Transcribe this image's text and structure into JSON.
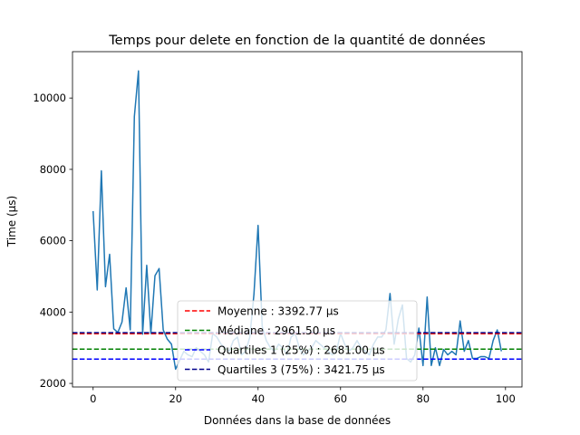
{
  "chart_data": {
    "type": "line",
    "title": "Temps pour delete en fonction de la quantité de données",
    "xlabel": "Données dans la base de données",
    "ylabel": "Time (µs)",
    "xlim": [
      -5,
      104
    ],
    "ylim": [
      1900,
      11300
    ],
    "xticks": [
      0,
      20,
      40,
      60,
      80,
      100
    ],
    "yticks": [
      2000,
      4000,
      6000,
      8000,
      10000
    ],
    "grid": false,
    "legend_position": "lower center",
    "series": [
      {
        "color": "#1f77b4",
        "x": [
          0,
          1,
          2,
          3,
          4,
          5,
          6,
          7,
          8,
          9,
          10,
          11,
          12,
          13,
          14,
          15,
          16,
          17,
          18,
          19,
          20,
          21,
          22,
          23,
          24,
          25,
          26,
          27,
          28,
          29,
          30,
          31,
          32,
          33,
          34,
          35,
          36,
          37,
          38,
          39,
          40,
          41,
          42,
          43,
          44,
          45,
          46,
          47,
          48,
          49,
          50,
          51,
          52,
          53,
          54,
          55,
          56,
          57,
          58,
          59,
          60,
          61,
          62,
          63,
          64,
          65,
          66,
          67,
          68,
          69,
          70,
          71,
          72,
          73,
          74,
          75,
          76,
          77,
          78,
          79,
          80,
          81,
          82,
          83,
          84,
          85,
          86,
          87,
          88,
          89,
          90,
          91,
          92,
          93,
          94,
          95,
          96,
          97,
          98,
          99
        ],
        "y": [
          6830,
          4620,
          7960,
          4710,
          5620,
          3530,
          3430,
          3720,
          4680,
          3500,
          9480,
          10760,
          3380,
          5310,
          3400,
          5020,
          5220,
          3500,
          3240,
          3100,
          2400,
          2650,
          2900,
          2800,
          2750,
          3000,
          2900,
          2800,
          2600,
          3400,
          3300,
          3100,
          3000,
          2900,
          3200,
          3300,
          2800,
          2900,
          3300,
          4500,
          6430,
          3600,
          3200,
          3000,
          2900,
          3100,
          3000,
          2800,
          3300,
          3400,
          3000,
          2800,
          2900,
          3000,
          3200,
          3100,
          3000,
          2900,
          2800,
          2900,
          3400,
          3100,
          2900,
          3000,
          3200,
          3000,
          2900,
          2800,
          3100,
          3300,
          3300,
          3500,
          4520,
          3100,
          3800,
          4200,
          2700,
          2600,
          2800,
          3550,
          2500,
          4420,
          2500,
          3000,
          2500,
          2950,
          2800,
          2900,
          2800,
          3750,
          2900,
          3200,
          2700,
          2700,
          2750,
          2750,
          2700,
          3200,
          3500,
          2900
        ]
      }
    ],
    "hlines": [
      {
        "label": "Moyenne : 3392.77 µs",
        "value": 3392.77,
        "color": "#ff0000"
      },
      {
        "label": "Médiane : 2961.50 µs",
        "value": 2961.5,
        "color": "#008000"
      },
      {
        "label": "Quartiles 1 (25%) : 2681.00 µs",
        "value": 2681.0,
        "color": "#0000ff"
      },
      {
        "label": "Quartiles 3 (75%) : 3421.75 µs",
        "value": 3421.75,
        "color": "#00008b"
      }
    ]
  }
}
